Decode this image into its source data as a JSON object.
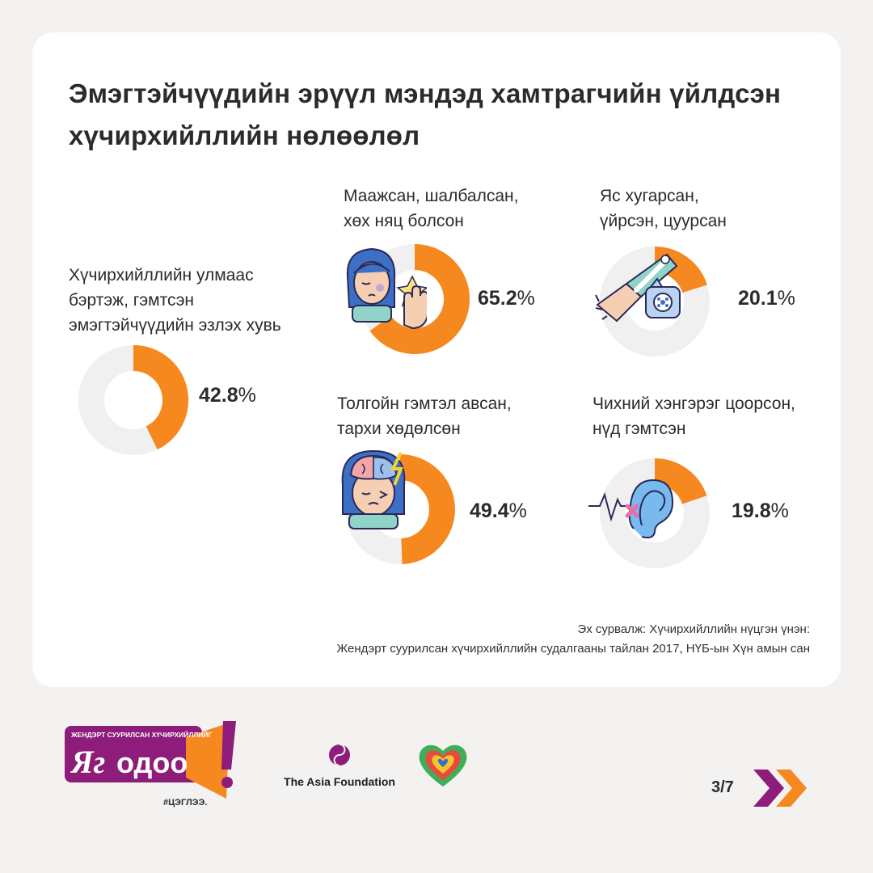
{
  "title": {
    "line1": "Эмэгтэйчүүдийн эрүүл мэндэд хамтрагчийн үйлдсэн",
    "line2": "хүчирхийллийн нөлөөлөл"
  },
  "chart_data": [
    {
      "type": "pie",
      "label_lines": [
        "Хүчирхийллийн улмаас",
        "бэртэж, гэмтсэн",
        "эмэгтэйчүүдийн эзлэх хувь"
      ],
      "value": 42.8,
      "value_text": "42.8",
      "unit": "%"
    },
    {
      "type": "pie",
      "label_lines": [
        "Маажсан, шалбалсан,",
        "хөх няц болсон"
      ],
      "value": 65.2,
      "value_text": "65.2",
      "unit": "%"
    },
    {
      "type": "pie",
      "label_lines": [
        "Яс хугарсан,",
        "үйрсэн, цуурсан"
      ],
      "value": 20.1,
      "value_text": "20.1",
      "unit": "%"
    },
    {
      "type": "pie",
      "label_lines": [
        "Толгойн гэмтэл авсан,",
        "тархи хөдөлсөн"
      ],
      "value": 49.4,
      "value_text": "49.4",
      "unit": "%"
    },
    {
      "type": "pie",
      "label_lines": [
        "Чихний хэнгэрэг цоорсон,",
        "нүд гэмтсэн"
      ],
      "value": 19.8,
      "value_text": "19.8",
      "unit": "%"
    }
  ],
  "source": {
    "line1": "Эх сурвалж: Хүчирхийллийн нүцгэн үнэн:",
    "line2": "Жендэрт суурилсан хүчирхийллийн судалгааны тайлан 2017, НҮБ-ын Хүн амын сан"
  },
  "footer": {
    "campaign_top": "ЖЕНДЭРТ СУУРИЛСАН ХҮЧИРХИЙЛЛИЙГ",
    "campaign_name_1": "Яг",
    "campaign_name_2": "одоо",
    "campaign_exclaim": "!",
    "campaign_tag": "#ЦЭГЛЭЭ.",
    "foundation": "The Asia Foundation",
    "page": "3/7"
  },
  "colors": {
    "accent": "#f5891f",
    "track": "#f1f0f0",
    "purple": "#8e1c7a",
    "background": "#f3f2f1",
    "card": "#ffffff"
  }
}
